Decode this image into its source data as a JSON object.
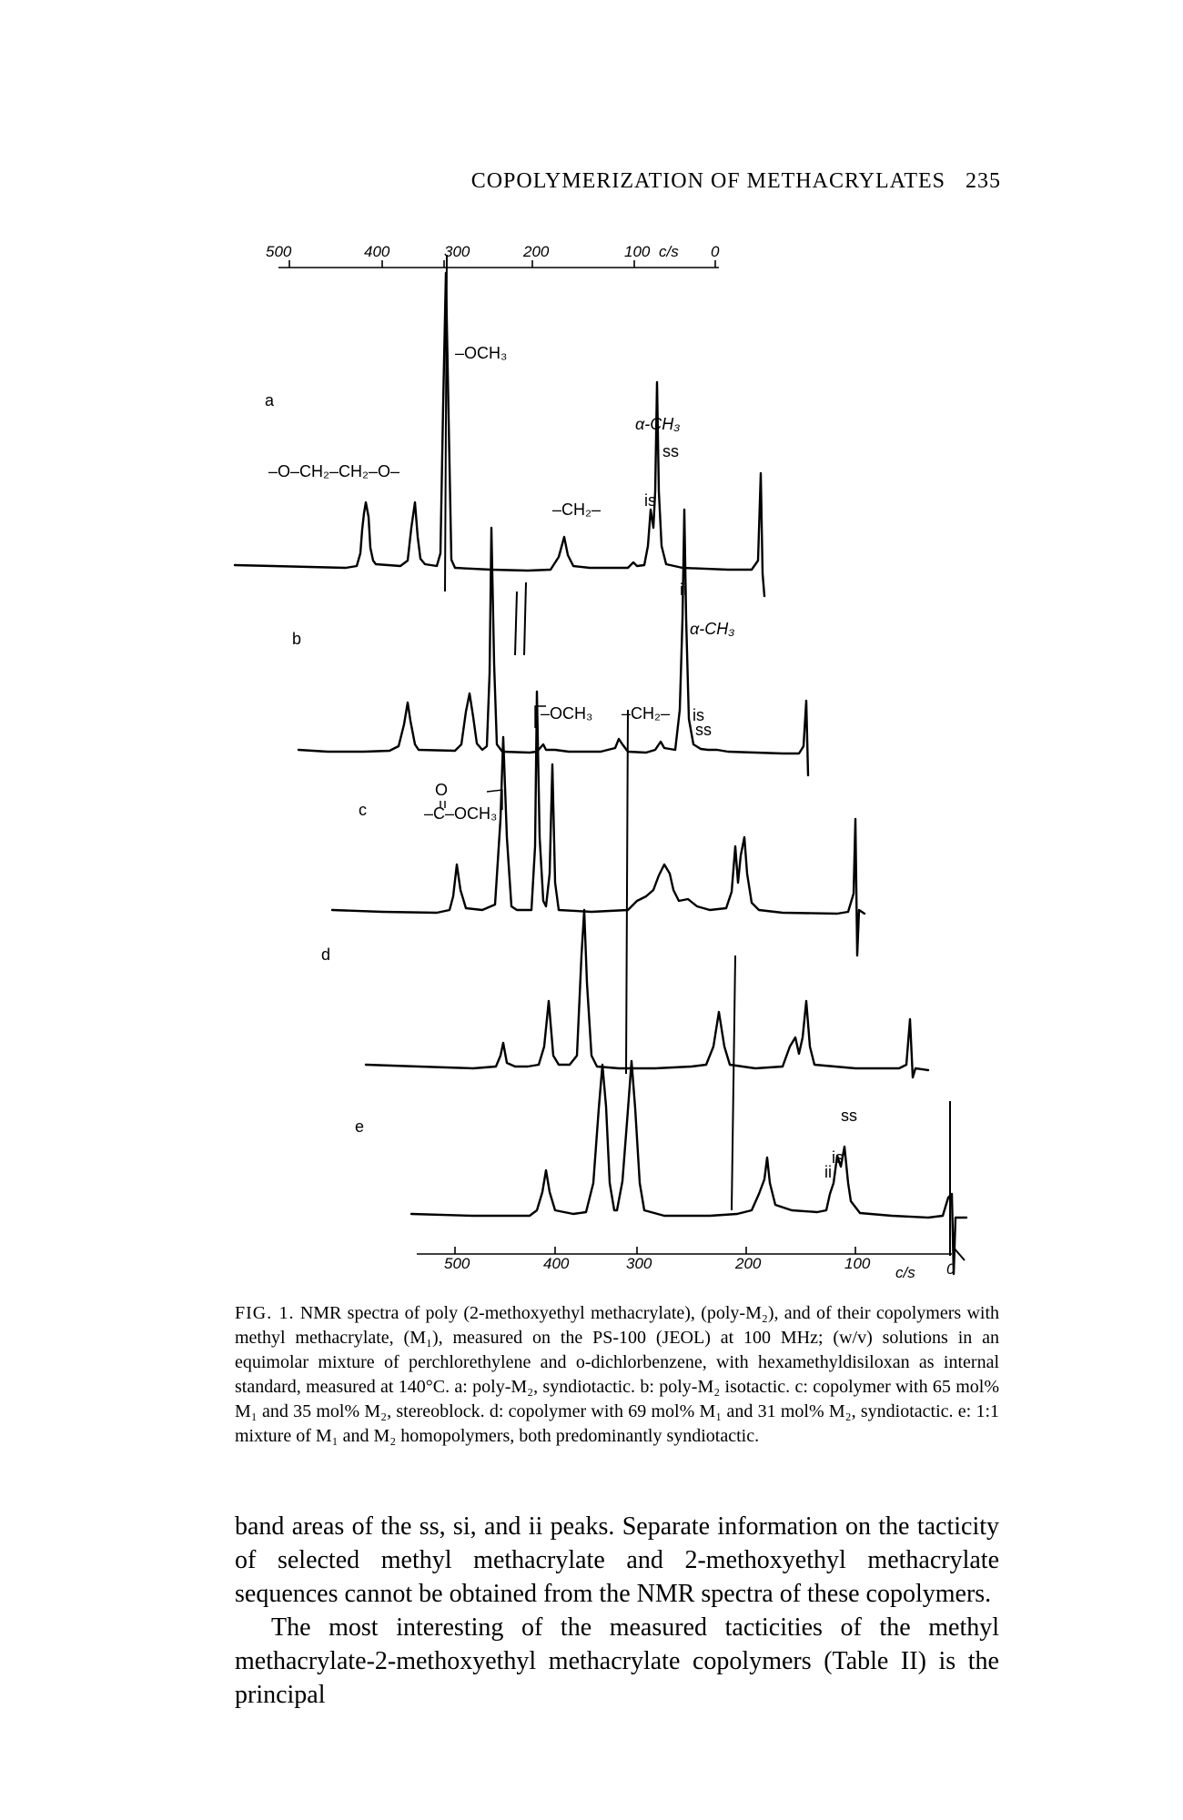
{
  "header": {
    "title": "COPOLYMERIZATION OF METHACRYLATES",
    "page_number": "235"
  },
  "figure": {
    "top_axis": {
      "ticks": [
        "500",
        "400",
        "300",
        "200",
        "100",
        "0"
      ],
      "unit": "c/s"
    },
    "bottom_axis": {
      "ticks": [
        "500",
        "400",
        "300",
        "200",
        "100",
        "0"
      ],
      "unit": "c/s"
    },
    "trace_labels": [
      "a",
      "b",
      "c",
      "d",
      "e"
    ],
    "annotations": {
      "och3": "–OCH₃",
      "ether_chain": "–O–CH₂–CH₂–O–",
      "alpha_ch3_a": "α-CH₃",
      "ss_a": "ss",
      "is_a": "is",
      "ch2_a": "–CH₂–",
      "ii_b": "ii",
      "alpha_ch3_b": "α-CH₃",
      "och3_b": "–OCH₃",
      "ch2_b": "–CH₂–",
      "is_b": "is",
      "ss_b": "ss",
      "ester_o": "O",
      "ester": "–C–OCH₃",
      "ss_e": "ss",
      "is_e": "is",
      "ii_e": "ii"
    }
  },
  "caption": {
    "lead": "FIG. 1.",
    "text": "NMR spectra of poly (2-methoxyethyl methacrylate), (poly-M₂), and of their copolymers with methyl methacrylate, (M₁), measured on the PS-100 (JEOL) at 100 MHz; (w/v) solutions in an equimolar mixture of perchlorethylene and o-dichlorbenzene, with hexamethyldisiloxan as internal standard, measured at 140°C. a: poly-M₂, syndiotactic. b: poly-M₂ isotactic. c: copolymer with 65 mol% M₁ and 35 mol% M₂, stereoblock. d: copolymer with 69 mol% M₁ and 31 mol% M₂, syndiotactic. e: 1:1 mixture of M₁ and M₂ homopolymers, both predominantly syndiotactic."
  },
  "body": {
    "paragraph1": "band areas of the ss, si, and ii peaks. Separate information on the tacticity of selected methyl methacrylate and 2-methoxyethyl methacrylate sequences cannot be obtained from the NMR spectra of these copolymers.",
    "paragraph2": "The most interesting of the measured tacticities of the methyl methacrylate-2-methoxyethyl methacrylate copolymers (Table II) is the principal"
  }
}
